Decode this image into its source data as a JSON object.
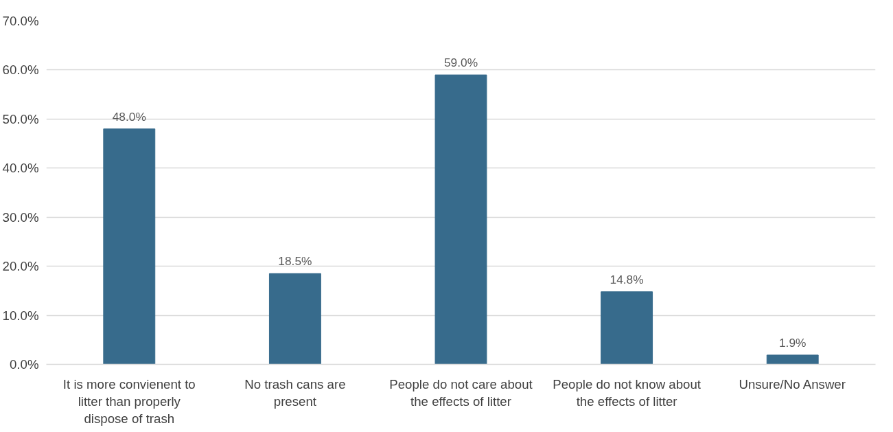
{
  "chart_data": {
    "type": "bar",
    "categories": [
      "It is more convienent to litter than properly dispose of trash",
      "No trash cans are present",
      "People do not care about the effects of litter",
      "People do not know about the effects of litter",
      "Unsure/No Answer"
    ],
    "values": [
      48.0,
      18.5,
      59.0,
      14.8,
      1.9
    ],
    "value_labels": [
      "48.0%",
      "18.5%",
      "59.0%",
      "14.8%",
      "1.9%"
    ],
    "color": "#376b8c",
    "ylim": [
      0,
      70
    ],
    "yticks": [
      {
        "value": 0,
        "label": "0.0%"
      },
      {
        "value": 10,
        "label": "10.0%"
      },
      {
        "value": 20,
        "label": "20.0%"
      },
      {
        "value": 30,
        "label": "30.0%"
      },
      {
        "value": 40,
        "label": "40.0%"
      },
      {
        "value": 50,
        "label": "50.0%"
      },
      {
        "value": 60,
        "label": "60.0%"
      },
      {
        "value": 70,
        "label": "70.0%"
      }
    ],
    "grid": "y"
  }
}
